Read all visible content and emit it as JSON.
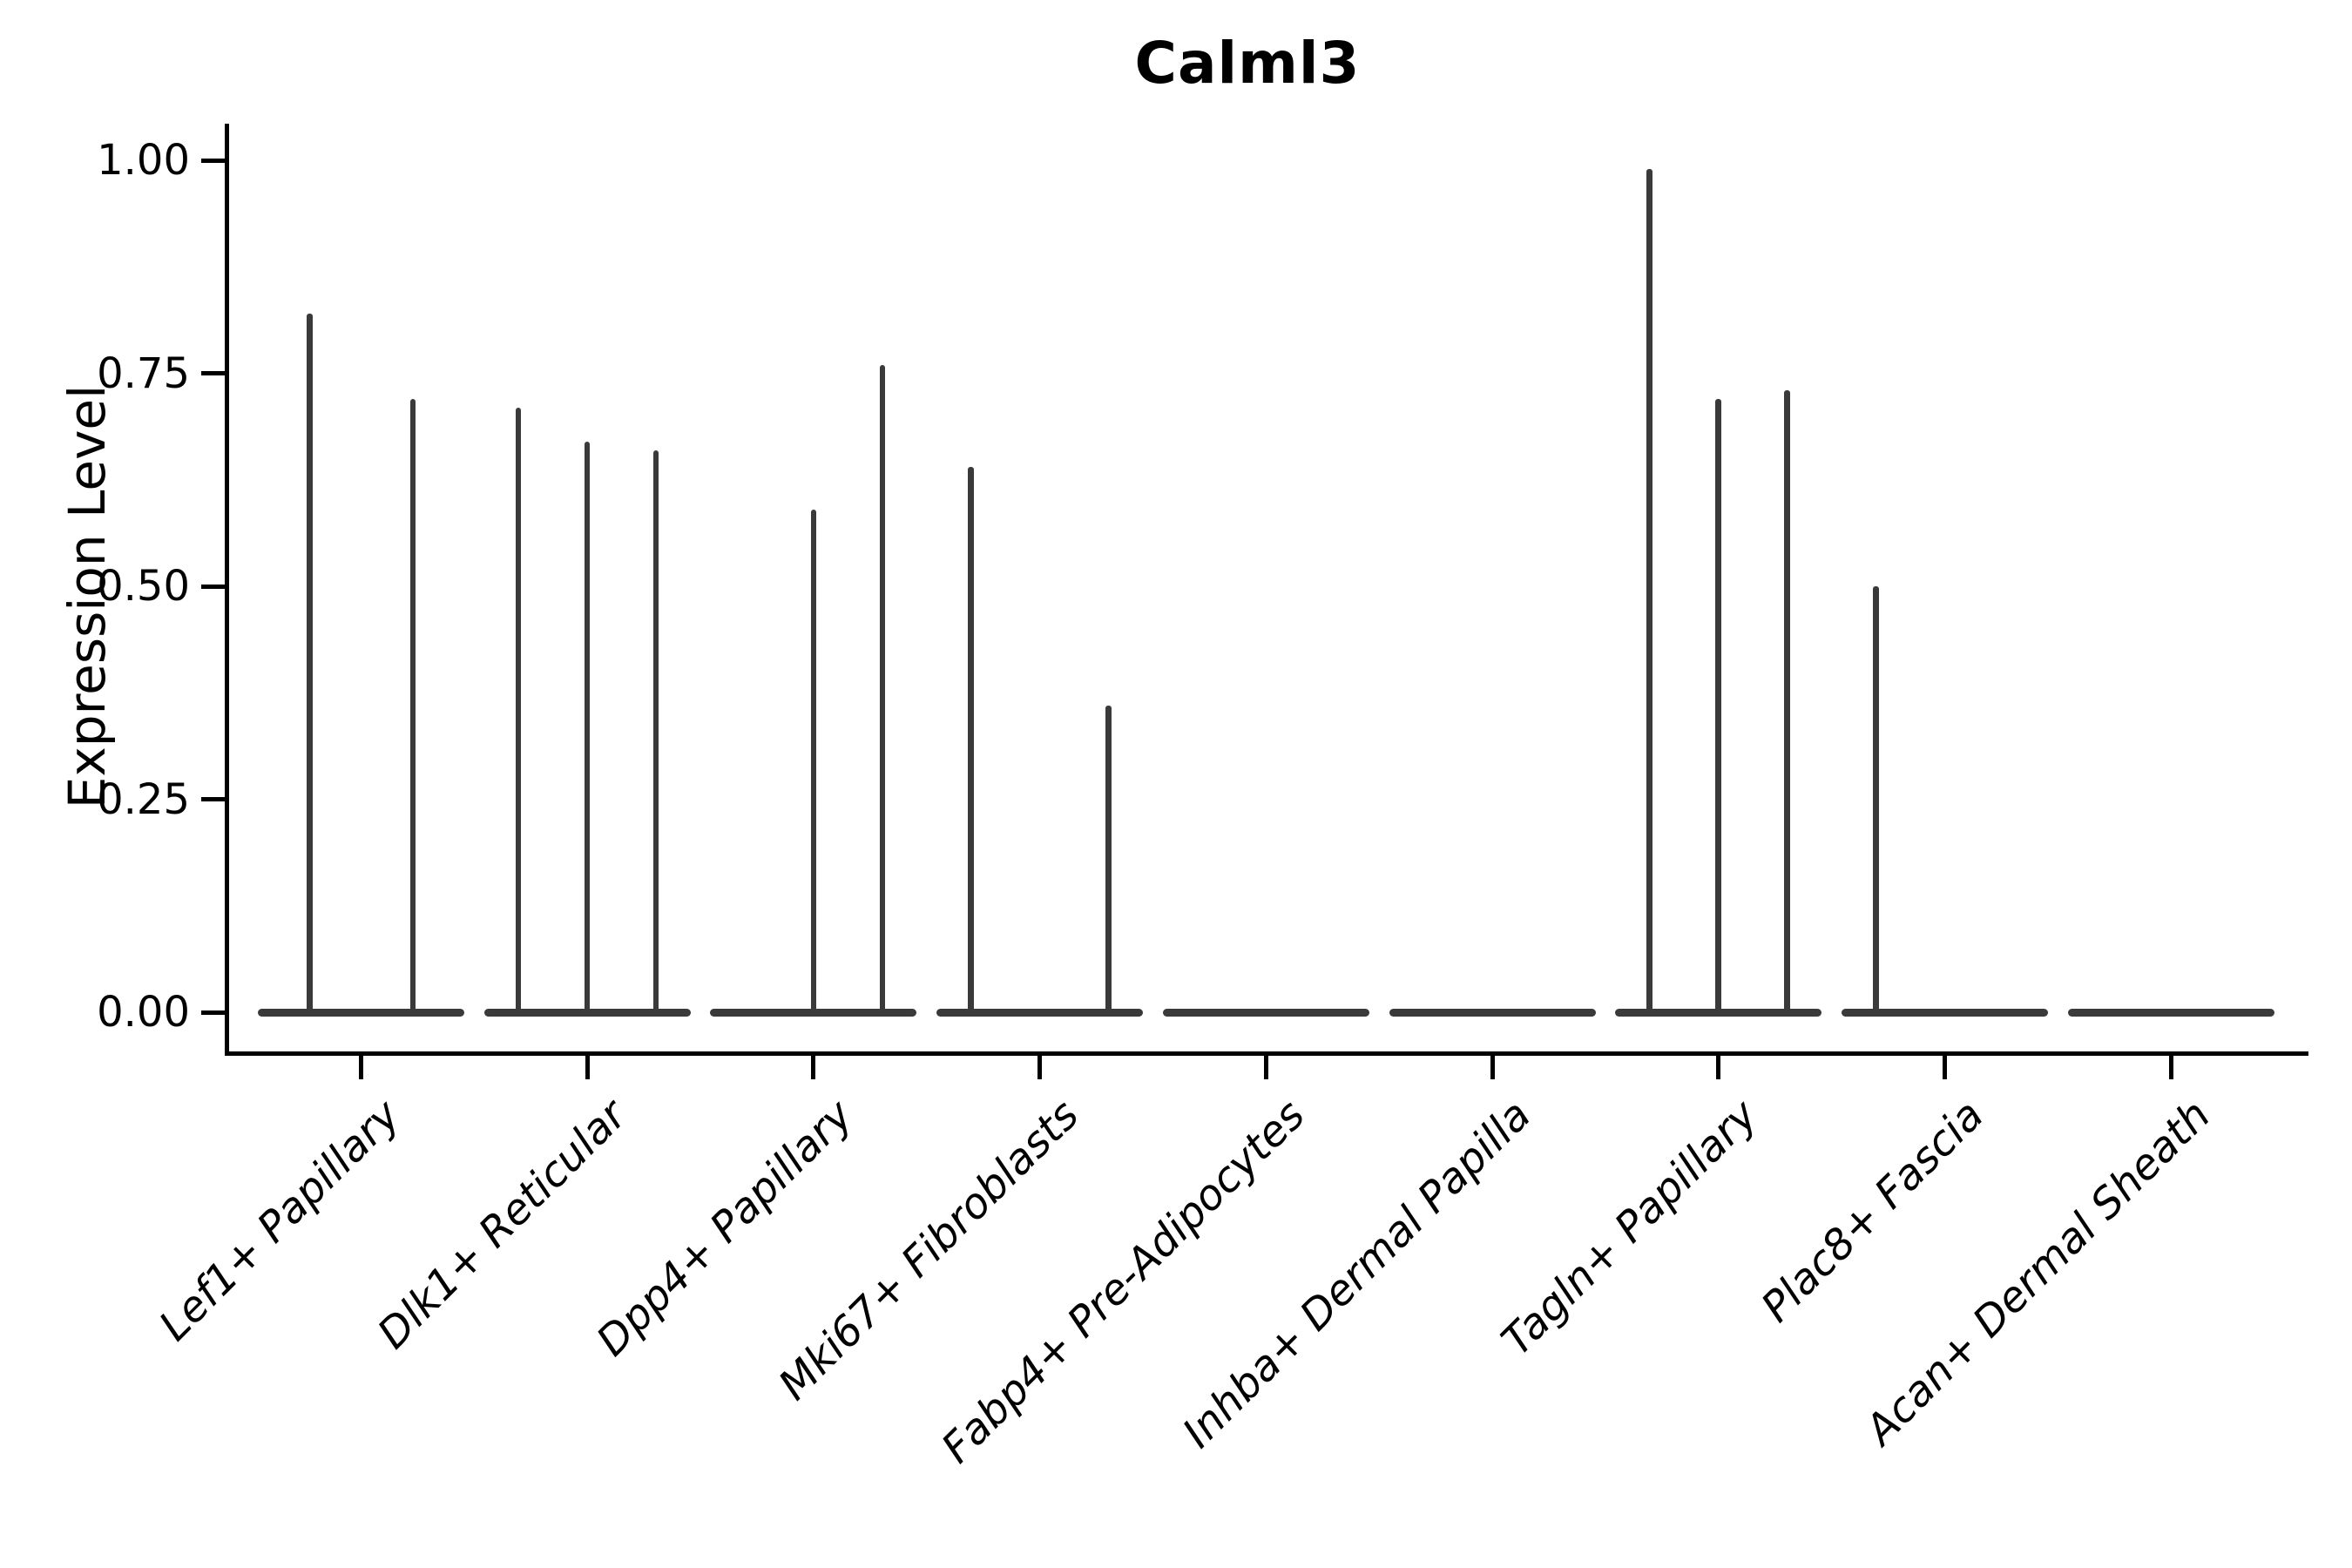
{
  "title": "Calml3",
  "y_axis": {
    "label": "Expression Level",
    "tick_labels": [
      "1.00",
      "0.75",
      "0.50",
      "0.25",
      "0.00"
    ]
  },
  "chart_data": {
    "type": "violin",
    "title": "Calml3",
    "xlabel": "",
    "ylabel": "Expression Level",
    "ylim": [
      -0.05,
      1.05
    ],
    "yticks": [
      1.0,
      0.75,
      0.5,
      0.25,
      0.0
    ],
    "grid": false,
    "legend": "none",
    "note": "Sparse single-cell expression violins: each category holds 1-3 thin sub-violins; value = max expression (spike top); 0 = flat all-zero violin at baseline",
    "categories": [
      {
        "label": "Lef1+ Papillary",
        "violin_max_values": [
          0.82,
          0.72
        ]
      },
      {
        "label": "Dlk1+ Reticular",
        "violin_max_values": [
          0.71,
          0.67,
          0.66
        ]
      },
      {
        "label": "Dpp4+ Papillary",
        "violin_max_values": [
          0,
          0.59,
          0.76
        ]
      },
      {
        "label": "Mki67+ Fibroblasts",
        "violin_max_values": [
          0.64,
          0,
          0.36
        ]
      },
      {
        "label": "Fabp4+ Pre-Adipocytes",
        "violin_max_values": [
          0
        ]
      },
      {
        "label": "Inhba+ Dermal Papilla",
        "violin_max_values": [
          0
        ]
      },
      {
        "label": "Tagln+ Papillary",
        "violin_max_values": [
          0.99,
          0.72,
          0.73
        ]
      },
      {
        "label": "Plac8+ Fascia",
        "violin_max_values": [
          0.5,
          0,
          0
        ]
      },
      {
        "label": "Acan+ Dermal Sheath",
        "violin_max_values": [
          0
        ]
      }
    ],
    "colors": {
      "violin": "#3a3a3a",
      "axis": "#000000",
      "text": "#000000",
      "background": "#ffffff"
    }
  }
}
